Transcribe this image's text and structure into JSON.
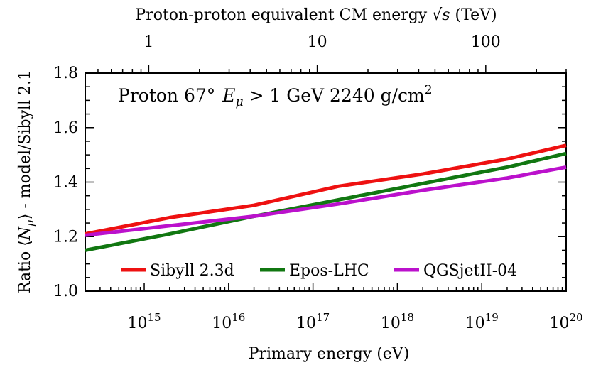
{
  "chart_data": {
    "type": "line",
    "annotation": {
      "prefix": "Proton 67°",
      "cut_symbol": "E",
      "cut_subscript": "μ",
      "cut_rest": " > 1 GeV 2240 g/cm",
      "cut_superscript": "2"
    },
    "top_axis": {
      "label_prefix": "Proton-proton equivalent CM energy ",
      "label_symbol": "√s",
      "label_suffix": " (TeV)",
      "scale": "log",
      "range": [
        0.42,
        300
      ],
      "ticks": [
        {
          "value": 1,
          "label": "1"
        },
        {
          "value": 10,
          "label": "10"
        },
        {
          "value": 100,
          "label": "100"
        }
      ]
    },
    "xlabel": "Primary energy (eV)",
    "xscale": "log",
    "xlim": [
      200000000000000.0,
      1e+20
    ],
    "xticks": [
      {
        "base": "10",
        "exp": "15",
        "value": 1000000000000000.0
      },
      {
        "base": "10",
        "exp": "16",
        "value": 1e+16
      },
      {
        "base": "10",
        "exp": "17",
        "value": 1e+17
      },
      {
        "base": "10",
        "exp": "18",
        "value": 1e+18
      },
      {
        "base": "10",
        "exp": "19",
        "value": 1e+19
      },
      {
        "base": "10",
        "exp": "20",
        "value": 1e+20
      }
    ],
    "ylabel": {
      "prefix": "Ratio ⟨",
      "symbol": "N",
      "subscript": "μ",
      "suffix": "⟩ - model/Sibyll 2.1"
    },
    "ylim": [
      1.0,
      1.8
    ],
    "yticks": [
      "1.0",
      "1.2",
      "1.4",
      "1.6",
      "1.8"
    ],
    "legend_position": "bottom-center",
    "series": [
      {
        "name": "Sibyll 2.3d",
        "color": "#ee1111",
        "x": [
          200000000000000.0,
          2000000000000000.0,
          2e+16,
          2e+17,
          2e+18,
          2e+19,
          1e+20
        ],
        "y": [
          1.21,
          1.27,
          1.315,
          1.385,
          1.43,
          1.485,
          1.535
        ]
      },
      {
        "name": "Epos-LHC",
        "color": "#117711",
        "x": [
          200000000000000.0,
          2000000000000000.0,
          2e+16,
          2e+17,
          2e+18,
          2e+19,
          1e+20
        ],
        "y": [
          1.15,
          1.21,
          1.275,
          1.335,
          1.395,
          1.455,
          1.505
        ]
      },
      {
        "name": "QGSjetII-04",
        "color": "#bb11cc",
        "x": [
          200000000000000.0,
          2000000000000000.0,
          2e+16,
          2e+17,
          2e+18,
          2e+19,
          1e+20
        ],
        "y": [
          1.205,
          1.24,
          1.275,
          1.32,
          1.37,
          1.415,
          1.455
        ]
      }
    ]
  }
}
